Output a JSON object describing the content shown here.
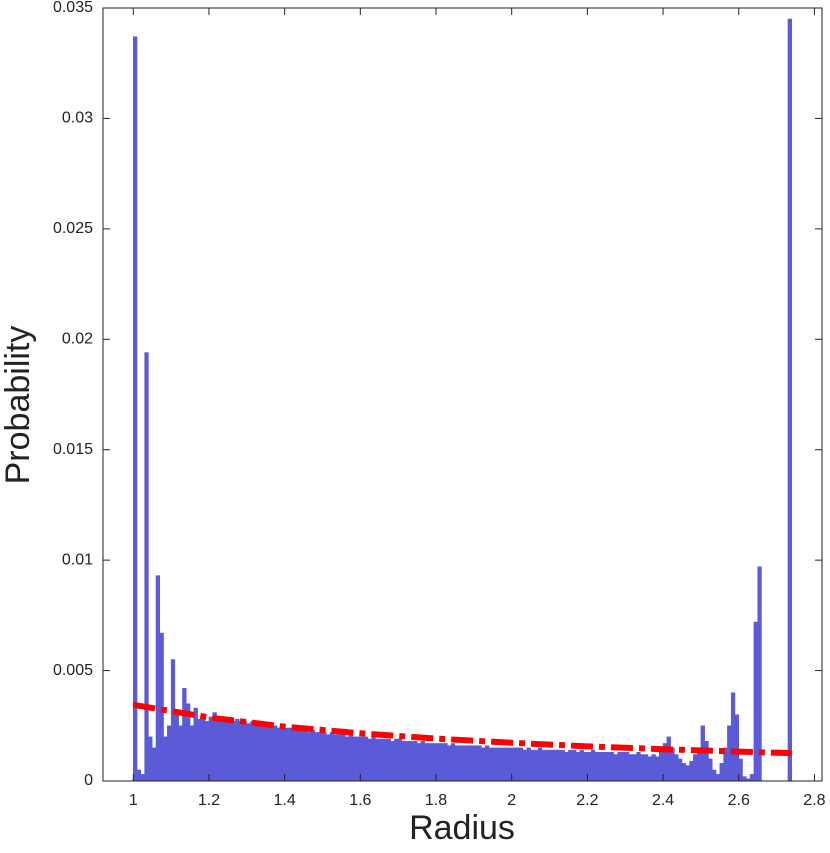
{
  "chart_data": {
    "type": "histogram",
    "xlabel": "Radius",
    "ylabel": "Probability",
    "xlim": [
      0.92,
      2.82
    ],
    "xticks": [
      1,
      1.2,
      1.4,
      1.6,
      1.8,
      2,
      2.2,
      2.4,
      2.6,
      2.8
    ],
    "ylim": [
      0,
      0.035
    ],
    "yticks": [
      0,
      0.005,
      0.01,
      0.015,
      0.02,
      0.025,
      0.03,
      0.035
    ],
    "color": "#5b5bd8",
    "bins": [
      1.0,
      1.01,
      1.02,
      1.03,
      1.04,
      1.05,
      1.06,
      1.07,
      1.08,
      1.09,
      1.1,
      1.11,
      1.12,
      1.13,
      1.14,
      1.15,
      1.16,
      1.17,
      1.18,
      1.19,
      1.2,
      1.21,
      1.22,
      1.23,
      1.24,
      1.25,
      1.26,
      1.27,
      1.28,
      1.29,
      1.3,
      1.31,
      1.32,
      1.33,
      1.34,
      1.35,
      1.36,
      1.37,
      1.38,
      1.39,
      1.4,
      1.41,
      1.42,
      1.43,
      1.44,
      1.45,
      1.46,
      1.47,
      1.48,
      1.49,
      1.5,
      1.51,
      1.52,
      1.53,
      1.54,
      1.55,
      1.56,
      1.57,
      1.58,
      1.59,
      1.6,
      1.61,
      1.62,
      1.63,
      1.64,
      1.65,
      1.66,
      1.67,
      1.68,
      1.69,
      1.7,
      1.71,
      1.72,
      1.73,
      1.74,
      1.75,
      1.76,
      1.77,
      1.78,
      1.79,
      1.8,
      1.81,
      1.82,
      1.83,
      1.84,
      1.85,
      1.86,
      1.87,
      1.88,
      1.89,
      1.9,
      1.91,
      1.92,
      1.93,
      1.94,
      1.95,
      1.96,
      1.97,
      1.98,
      1.99,
      2.0,
      2.01,
      2.02,
      2.03,
      2.04,
      2.05,
      2.06,
      2.07,
      2.08,
      2.09,
      2.1,
      2.11,
      2.12,
      2.13,
      2.14,
      2.15,
      2.16,
      2.17,
      2.18,
      2.19,
      2.2,
      2.21,
      2.22,
      2.23,
      2.24,
      2.25,
      2.26,
      2.27,
      2.28,
      2.29,
      2.3,
      2.31,
      2.32,
      2.33,
      2.34,
      2.35,
      2.36,
      2.37,
      2.38,
      2.39,
      2.4,
      2.41,
      2.42,
      2.43,
      2.44,
      2.45,
      2.46,
      2.47,
      2.48,
      2.49,
      2.5,
      2.51,
      2.52,
      2.53,
      2.54,
      2.55,
      2.56,
      2.57,
      2.58,
      2.59,
      2.6,
      2.61,
      2.62,
      2.63,
      2.64,
      2.65,
      2.66,
      2.67,
      2.68,
      2.69,
      2.7,
      2.71,
      2.72,
      2.73,
      2.74
    ],
    "values": [
      0.0337,
      0.0005,
      0.0003,
      0.0194,
      0.002,
      0.0015,
      0.0093,
      0.0067,
      0.002,
      0.0025,
      0.0055,
      0.003,
      0.0025,
      0.0042,
      0.0035,
      0.0025,
      0.0033,
      0.0028,
      0.003,
      0.0027,
      0.0029,
      0.0031,
      0.0028,
      0.0029,
      0.0028,
      0.0028,
      0.0027,
      0.0028,
      0.0027,
      0.0027,
      0.0026,
      0.0027,
      0.0026,
      0.0026,
      0.0025,
      0.0026,
      0.0025,
      0.0025,
      0.0024,
      0.0025,
      0.0024,
      0.0024,
      0.0023,
      0.0024,
      0.0023,
      0.0023,
      0.0022,
      0.0023,
      0.0022,
      0.0022,
      0.0022,
      0.0021,
      0.0022,
      0.0021,
      0.0021,
      0.0021,
      0.002,
      0.0021,
      0.002,
      0.002,
      0.002,
      0.002,
      0.0019,
      0.002,
      0.0019,
      0.0019,
      0.0019,
      0.0019,
      0.0018,
      0.0019,
      0.0019,
      0.0018,
      0.0018,
      0.0018,
      0.0018,
      0.0017,
      0.0018,
      0.0017,
      0.0017,
      0.0017,
      0.0017,
      0.0017,
      0.0017,
      0.0016,
      0.0017,
      0.0016,
      0.0016,
      0.0016,
      0.0016,
      0.0016,
      0.0016,
      0.0016,
      0.0015,
      0.0016,
      0.0015,
      0.0015,
      0.0015,
      0.0015,
      0.0015,
      0.0015,
      0.0015,
      0.0015,
      0.0015,
      0.0014,
      0.0015,
      0.0014,
      0.0014,
      0.0015,
      0.0014,
      0.0014,
      0.0014,
      0.0014,
      0.0014,
      0.0014,
      0.0013,
      0.0014,
      0.0014,
      0.0013,
      0.0014,
      0.0013,
      0.0013,
      0.0014,
      0.0013,
      0.0013,
      0.0013,
      0.0013,
      0.0013,
      0.0012,
      0.0013,
      0.0013,
      0.0013,
      0.0012,
      0.0012,
      0.0013,
      0.0012,
      0.0012,
      0.0011,
      0.0012,
      0.0011,
      0.0014,
      0.0017,
      0.002,
      0.0015,
      0.0012,
      0.001,
      0.0008,
      0.0007,
      0.0009,
      0.0012,
      0.0015,
      0.0025,
      0.0018,
      0.001,
      0.0005,
      0.0003,
      0.0008,
      0.0015,
      0.0025,
      0.004,
      0.003,
      0.001,
      0.0002,
      0.0001,
      0.0003,
      0.0072,
      0.0097,
      0,
      0,
      0,
      0,
      0,
      0,
      0,
      0.0345
    ],
    "fit": {
      "color": "#ff0000",
      "style": "dashed",
      "x": [
        1.0,
        1.2,
        1.4,
        1.6,
        1.8,
        2.0,
        2.2,
        2.4,
        2.6,
        2.74
      ],
      "values": [
        0.00345,
        0.00288,
        0.00246,
        0.00216,
        0.00192,
        0.00173,
        0.00157,
        0.00144,
        0.00133,
        0.00126
      ]
    }
  }
}
